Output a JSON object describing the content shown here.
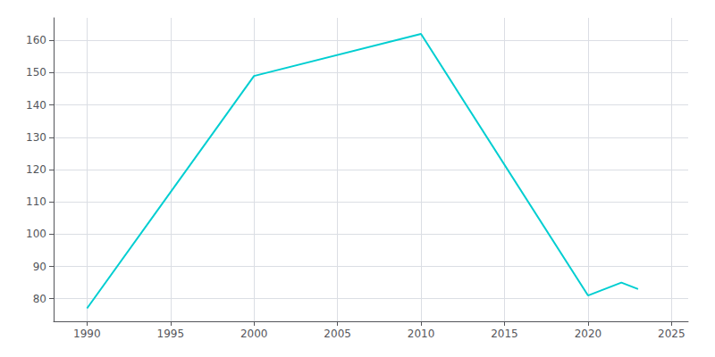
{
  "chart_data": {
    "type": "line",
    "x": [
      1990,
      2000,
      2010,
      2020,
      2022,
      2023
    ],
    "values": [
      77,
      149,
      162,
      81,
      85,
      83
    ],
    "color": "#00CED1",
    "xlim": [
      1988,
      2026
    ],
    "ylim": [
      73,
      167
    ],
    "xticks": [
      1990,
      1995,
      2000,
      2005,
      2010,
      2015,
      2020,
      2025
    ],
    "yticks": [
      80,
      90,
      100,
      110,
      120,
      130,
      140,
      150,
      160
    ],
    "grid": true
  }
}
